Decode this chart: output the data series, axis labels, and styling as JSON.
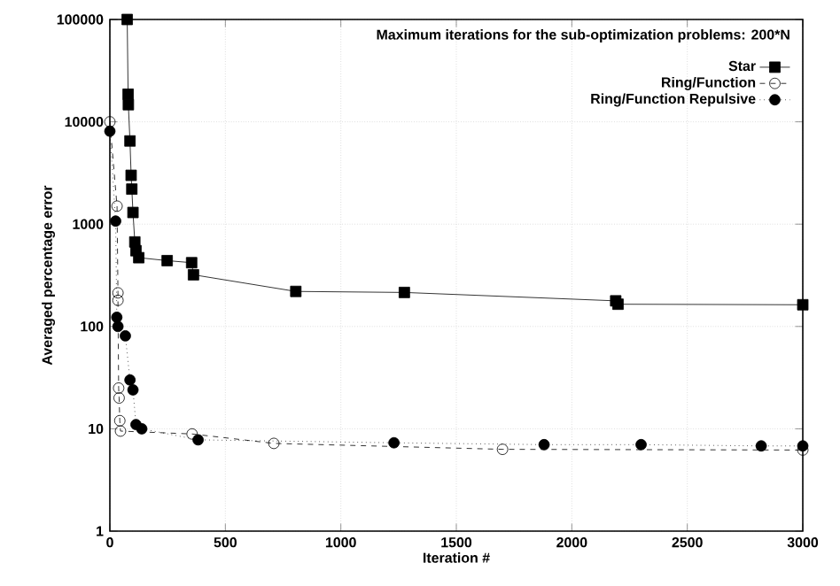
{
  "chart_data": {
    "type": "line",
    "xlabel": "Iteration #",
    "ylabel": "Averaged percentage error",
    "legend_title": "Maximum iterations for the sub-optimization problems: 200*N",
    "log": "y",
    "grid": true,
    "legend": "top right",
    "xlim": [
      0,
      3000
    ],
    "ylim": [
      1,
      100000
    ],
    "xticks": [
      0,
      500,
      1000,
      1500,
      2000,
      2500,
      3000
    ],
    "yticks": [
      1,
      10,
      100,
      1000,
      10000,
      100000
    ],
    "series": [
      {
        "name": "Star",
        "color": "#000000",
        "marker": "square",
        "line_style": "solid",
        "x": [
          75,
          79,
          80,
          87,
          92,
          95,
          100,
          108,
          113,
          125,
          248,
          354,
          362,
          805,
          1275,
          2190,
          2200,
          3000
        ],
        "values": [
          100000,
          18600,
          14700,
          6500,
          3000,
          2200,
          1300,
          670,
          550,
          470,
          440,
          420,
          320,
          220,
          215,
          178,
          165,
          163
        ]
      },
      {
        "name": "Ring/Function",
        "color": "#000000",
        "marker": "circle",
        "line_style": "dashed",
        "x": [
          0,
          31,
          35,
          35,
          38,
          40,
          43,
          46,
          356,
          710,
          1700,
          3000
        ],
        "values": [
          10000,
          1500,
          213,
          180,
          25,
          20,
          12,
          9.5,
          8.9,
          7.2,
          6.3,
          6.2
        ]
      },
      {
        "name": "Ring/Function Repulsive",
        "color": "#000000",
        "marker": "circle",
        "line_style": "dotted",
        "x": [
          0,
          25,
          30,
          35,
          67,
          87,
          100,
          113,
          138,
          382,
          1230,
          1880,
          2300,
          2820,
          3000
        ],
        "values": [
          8100,
          1070,
          123,
          100,
          81,
          30,
          24,
          11,
          10,
          7.8,
          7.3,
          7.0,
          7.0,
          6.8,
          6.8
        ]
      }
    ]
  }
}
